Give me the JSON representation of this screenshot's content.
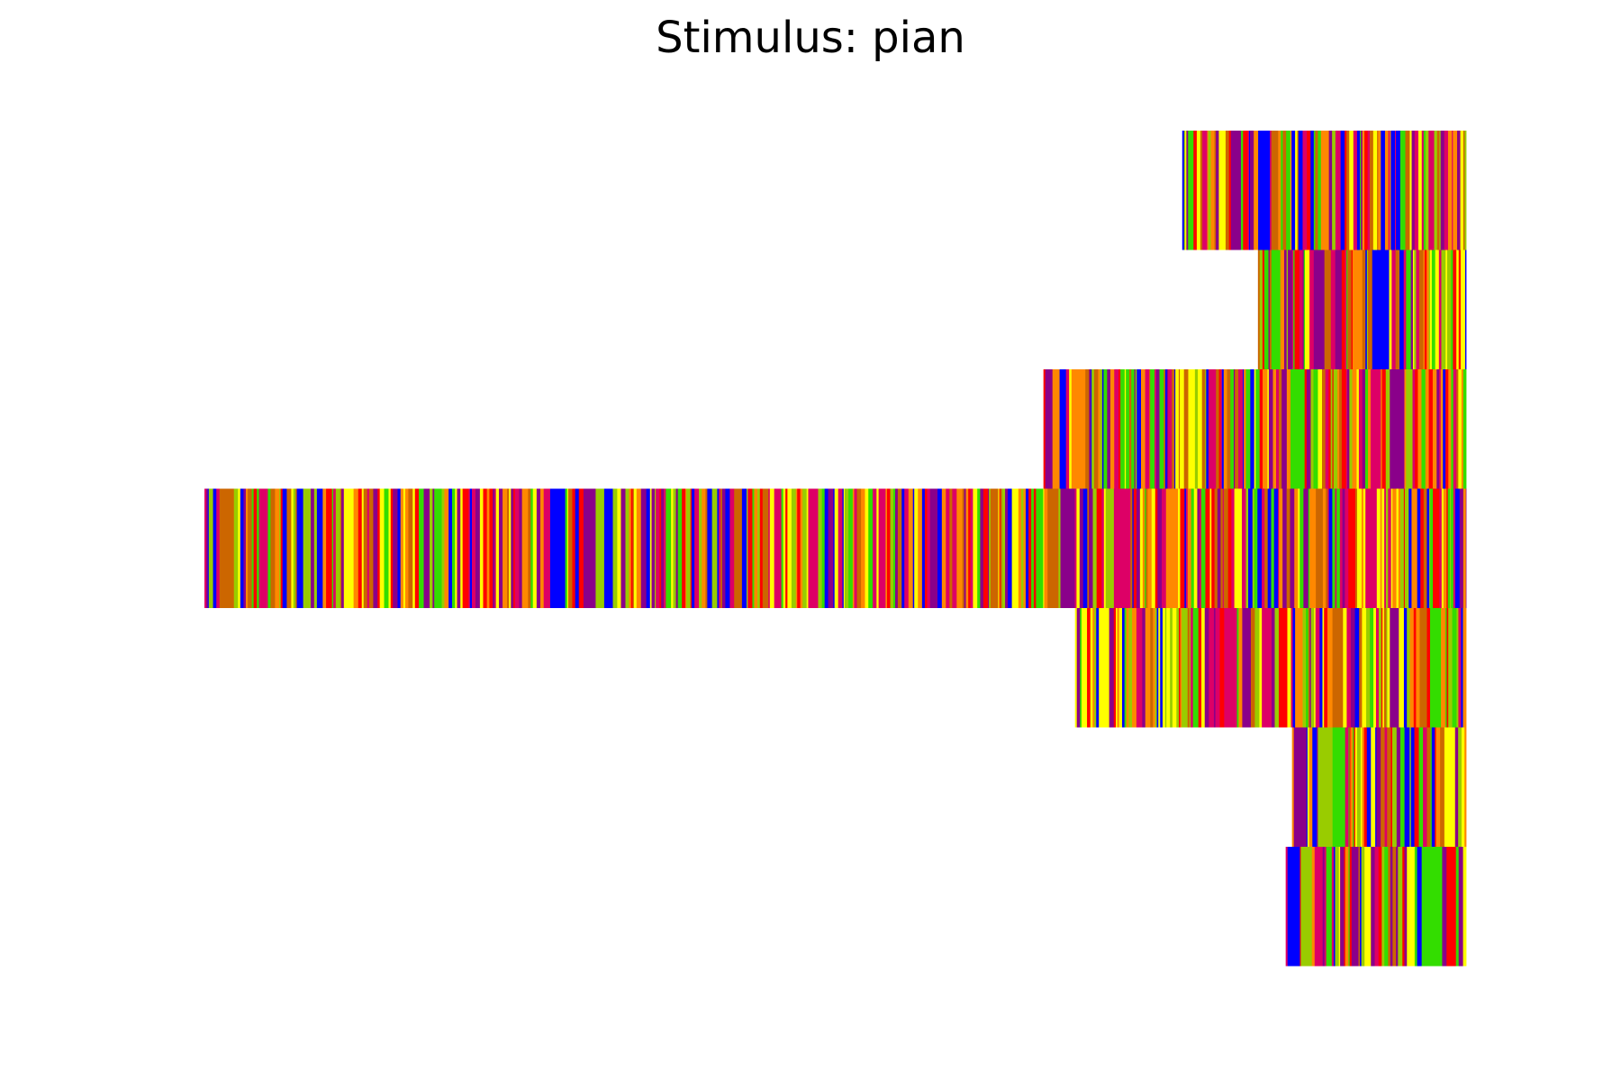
{
  "chart_data": {
    "type": "heatmap",
    "title": "Stimulus: pian",
    "xlabel": "",
    "ylabel": "",
    "grid": false,
    "axes_visible": false,
    "legend": "none",
    "palette": [
      "#ffff00",
      "#ff0000",
      "#8a008a",
      "#0000ff",
      "#33dd00",
      "#cc6600",
      "#ff8800",
      "#99cc00",
      "#dd0066"
    ],
    "x_range": [
      0,
      1
    ],
    "rows": [
      {
        "start": 0.775,
        "end": 1.0,
        "seed": 11
      },
      {
        "start": 0.835,
        "end": 1.0,
        "seed": 23
      },
      {
        "start": 0.665,
        "end": 1.0,
        "seed": 37
      },
      {
        "start": 0.0,
        "end": 1.0,
        "seed": 41
      },
      {
        "start": 0.69,
        "end": 1.0,
        "seed": 53
      },
      {
        "start": 0.862,
        "end": 1.0,
        "seed": 67
      },
      {
        "start": 0.857,
        "end": 1.0,
        "seed": 79
      }
    ]
  }
}
